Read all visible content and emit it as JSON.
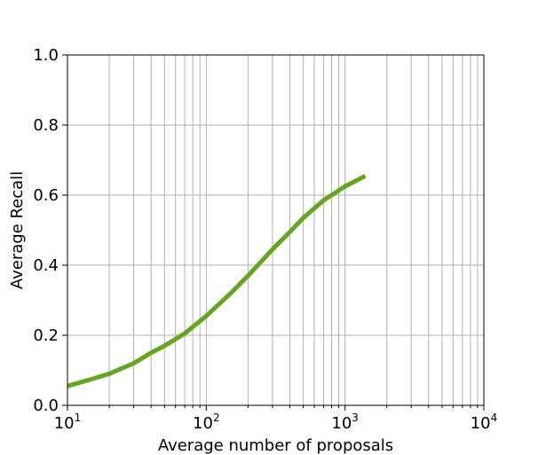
{
  "chart_data": {
    "type": "line",
    "xlabel": "Average number of proposals",
    "ylabel": "Average Recall",
    "xscale": "log",
    "xlim": [
      10,
      10000
    ],
    "ylim": [
      0,
      1
    ],
    "grid": true,
    "x_ticks": [
      {
        "base": "10",
        "exp": "1",
        "value": 10
      },
      {
        "base": "10",
        "exp": "2",
        "value": 100
      },
      {
        "base": "10",
        "exp": "3",
        "value": 1000
      },
      {
        "base": "10",
        "exp": "4",
        "value": 10000
      }
    ],
    "y_ticks": [
      {
        "label": "0.0",
        "value": 0.0
      },
      {
        "label": "0.2",
        "value": 0.2
      },
      {
        "label": "0.4",
        "value": 0.4
      },
      {
        "label": "0.6",
        "value": 0.6
      },
      {
        "label": "0.8",
        "value": 0.8
      },
      {
        "label": "1.0",
        "value": 1.0
      }
    ],
    "series": [
      {
        "color": "#66a61e",
        "x": [
          10,
          15,
          20,
          30,
          40,
          50,
          70,
          100,
          150,
          200,
          300,
          400,
          500,
          700,
          1000,
          1400
        ],
        "y": [
          0.055,
          0.075,
          0.09,
          0.12,
          0.15,
          0.17,
          0.205,
          0.255,
          0.32,
          0.37,
          0.445,
          0.495,
          0.535,
          0.585,
          0.625,
          0.655
        ]
      }
    ]
  }
}
